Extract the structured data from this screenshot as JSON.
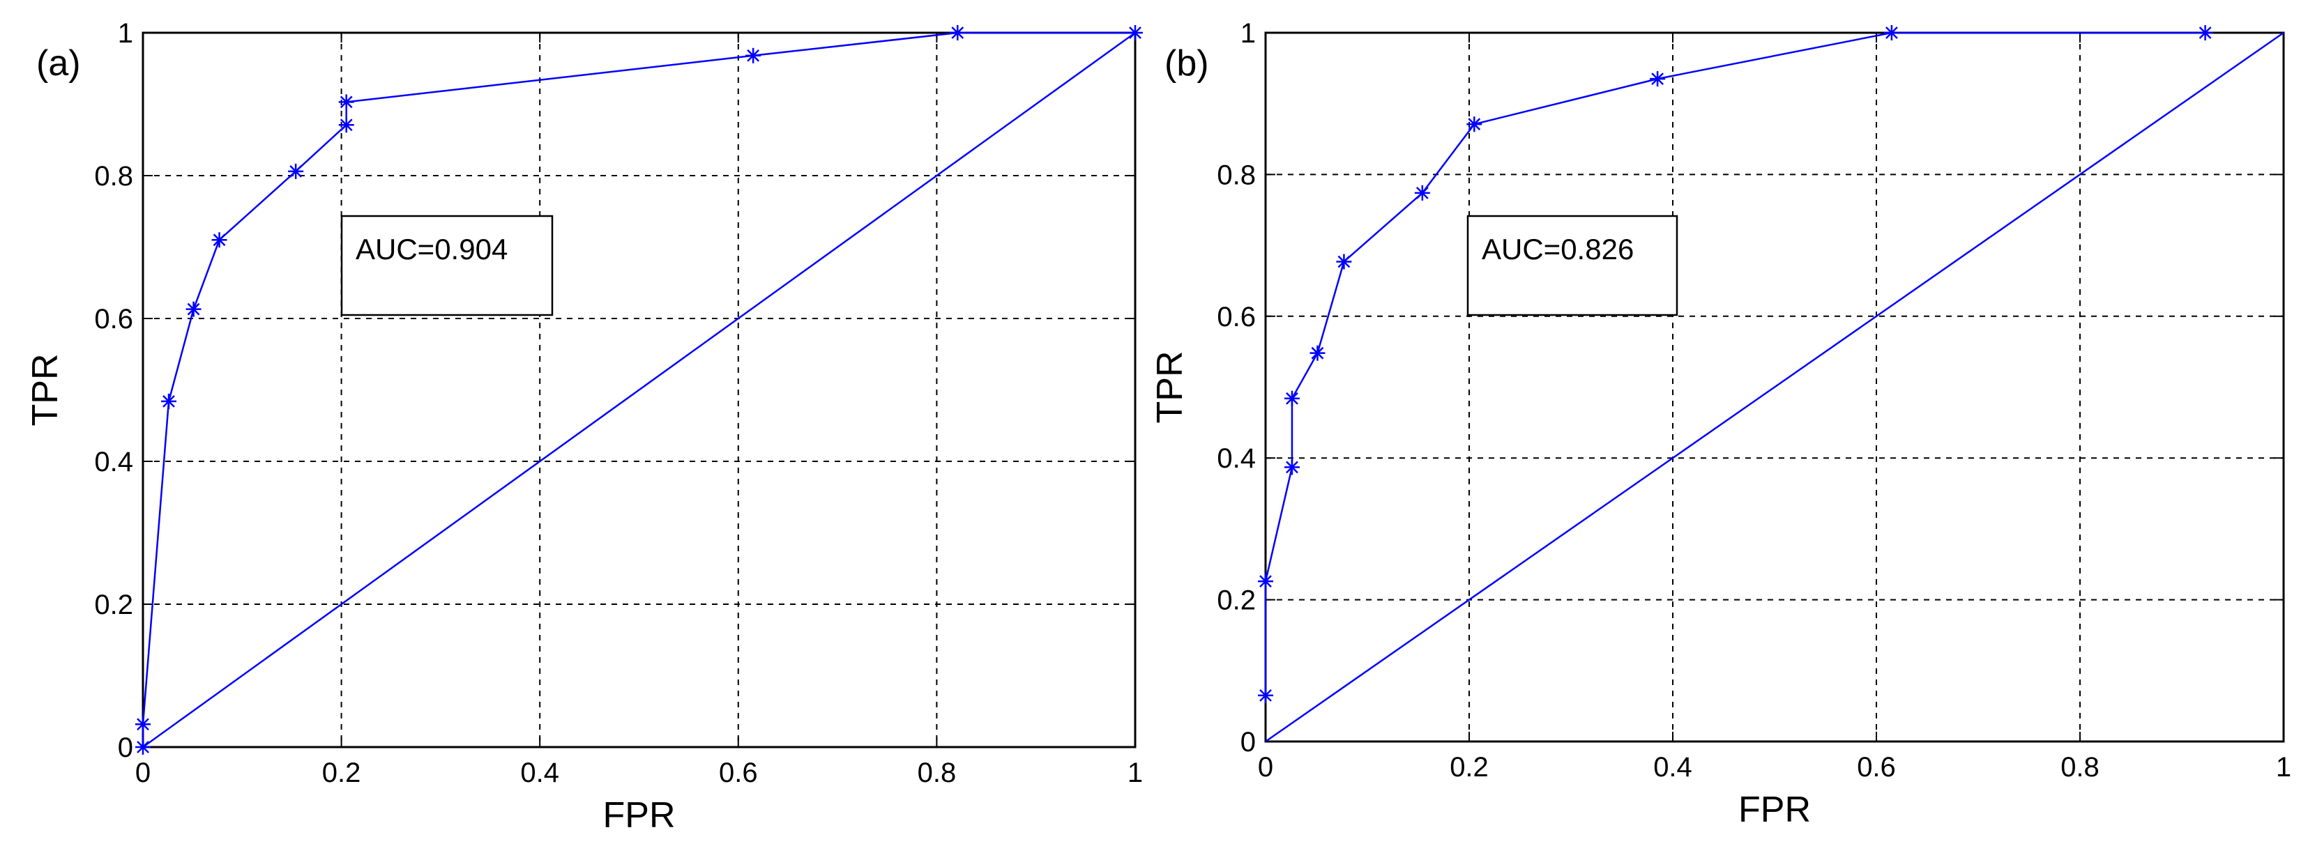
{
  "chart_data": [
    {
      "type": "line",
      "panel_label": "(a)",
      "xlabel": "FPR",
      "ylabel": "TPR",
      "xlim": [
        0,
        1
      ],
      "ylim": [
        0,
        1
      ],
      "xticks": [
        "0",
        "0.2",
        "0.4",
        "0.6",
        "0.8",
        "1"
      ],
      "yticks": [
        "0",
        "0.2",
        "0.4",
        "0.6",
        "0.8",
        "1"
      ],
      "grid": true,
      "annotation": "AUC=0.904",
      "colors": {
        "line": "#0000ff",
        "grid": "#000000"
      },
      "series": [
        {
          "marker": "star",
          "x": [
            0.0,
            0.0,
            0.026,
            0.051,
            0.077,
            0.154,
            0.205,
            0.205,
            0.615,
            0.821,
            1.0
          ],
          "y": [
            0.0,
            0.032,
            0.484,
            0.613,
            0.71,
            0.806,
            0.871,
            0.903,
            0.968,
            1.0,
            1.0
          ]
        },
        {
          "marker": "none",
          "x": [
            0,
            1
          ],
          "y": [
            0,
            1
          ]
        }
      ]
    },
    {
      "type": "line",
      "panel_label": "(b)",
      "xlabel": "FPR",
      "ylabel": "TPR",
      "xlim": [
        0,
        1
      ],
      "ylim": [
        0,
        1
      ],
      "xticks": [
        "0",
        "0.2",
        "0.4",
        "0.6",
        "0.8",
        "1"
      ],
      "yticks": [
        "0",
        "0.2",
        "0.4",
        "0.6",
        "0.8",
        "1"
      ],
      "grid": true,
      "annotation": "AUC=0.826",
      "colors": {
        "line": "#0000ff",
        "grid": "#000000"
      },
      "series": [
        {
          "marker": "star",
          "x": [
            0.0,
            0.0,
            0.026,
            0.026,
            0.051,
            0.077,
            0.154,
            0.205,
            0.385,
            0.615,
            0.923
          ],
          "y": [
            0.065,
            0.226,
            0.387,
            0.484,
            0.548,
            0.677,
            0.774,
            0.871,
            0.935,
            1.0,
            1.0
          ]
        },
        {
          "marker": "none",
          "x": [
            0,
            1
          ],
          "y": [
            0,
            1
          ]
        }
      ]
    }
  ]
}
